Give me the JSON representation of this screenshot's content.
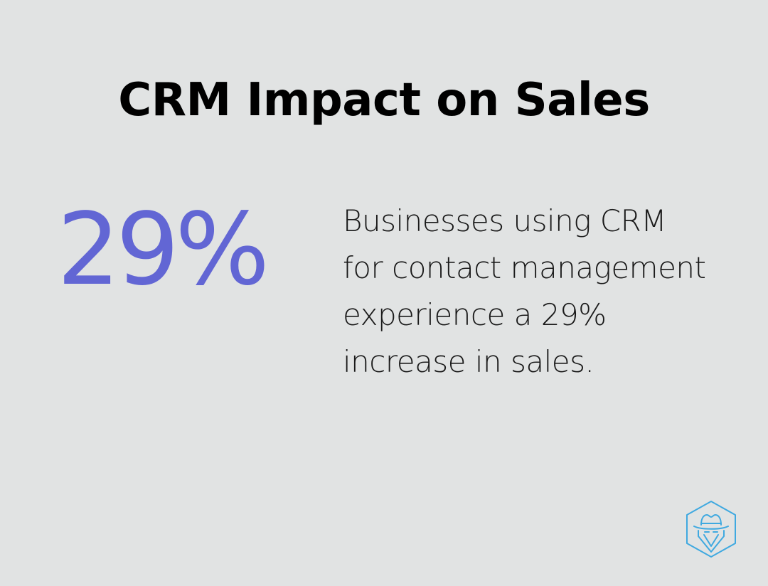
{
  "header": {
    "title": "CRM Impact on Sales"
  },
  "stat": {
    "value": "29%"
  },
  "description": {
    "text": "Businesses using CRM for contact management experience a 29% increase in sales."
  },
  "logo": {
    "icon": "spy-hat-hexagon-logo-icon",
    "color": "#3fa9e0"
  },
  "colors": {
    "background": "#e1e3e3",
    "accent": "#6266d4",
    "title": "#000000",
    "body_text": "#1a1a1a"
  }
}
